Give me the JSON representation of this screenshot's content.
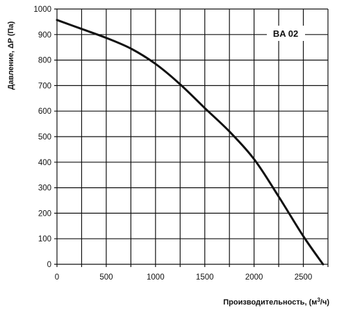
{
  "chart_data": {
    "type": "line",
    "title": "",
    "xlabel": "Производительность, (м³/ч)",
    "xlabel_parts": {
      "prefix": "Производительность, (м",
      "sup": "3",
      "suffix": "/ч)"
    },
    "ylabel": "Давление, ΔP (Па)",
    "xlim": [
      0,
      2750
    ],
    "ylim": [
      0,
      1000
    ],
    "x_tick_labels": [
      "0",
      "500",
      "1000",
      "1500",
      "2000",
      "2500"
    ],
    "y_tick_labels": [
      "0",
      "100",
      "200",
      "300",
      "400",
      "500",
      "600",
      "700",
      "800",
      "900",
      "1000"
    ],
    "x_ticks": [
      0,
      500,
      1000,
      1500,
      2000,
      2500
    ],
    "y_ticks": [
      0,
      100,
      200,
      300,
      400,
      500,
      600,
      700,
      800,
      900,
      1000
    ],
    "x_grid": [
      0,
      250,
      500,
      750,
      1000,
      1250,
      1500,
      1750,
      2000,
      2250,
      2500,
      2750
    ],
    "y_grid": [
      0,
      100,
      200,
      300,
      400,
      500,
      600,
      700,
      800,
      900,
      1000
    ],
    "grid": true,
    "label_tag": "BA 02",
    "series": [
      {
        "name": "",
        "x": [
          0,
          250,
          500,
          750,
          1000,
          1250,
          1500,
          1750,
          2000,
          2250,
          2500,
          2700
        ],
        "y": [
          957,
          922,
          887,
          845,
          785,
          705,
          612,
          520,
          412,
          265,
          110,
          0
        ]
      }
    ]
  },
  "colors": {
    "line": "#111111",
    "grid": "#111111",
    "background": "#ffffff"
  }
}
